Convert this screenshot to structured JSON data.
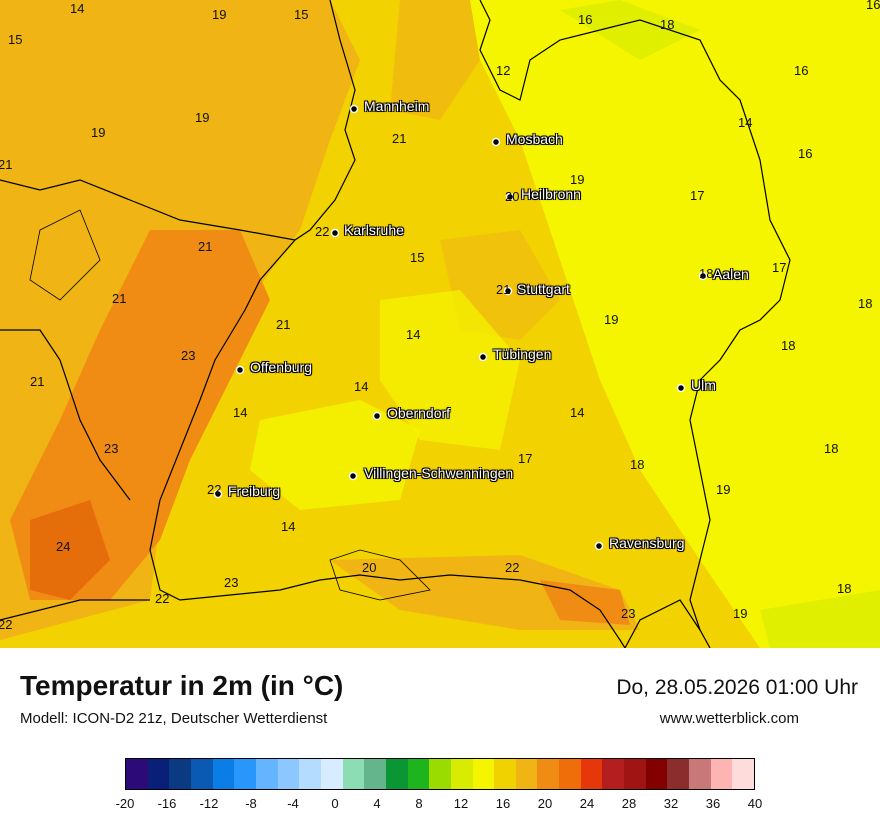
{
  "map": {
    "cities": [
      {
        "name": "Mannheim"
      },
      {
        "name": "Mosbach"
      },
      {
        "name": "Heilbronn"
      },
      {
        "name": "Karlsruhe"
      },
      {
        "name": "Aalen"
      },
      {
        "name": "Stuttgart"
      },
      {
        "name": "Tübingen"
      },
      {
        "name": "Offenburg"
      },
      {
        "name": "Ulm"
      },
      {
        "name": "Oberndorf"
      },
      {
        "name": "Villingen-Schwenningen"
      },
      {
        "name": "Freiburg"
      },
      {
        "name": "Ravensburg"
      }
    ],
    "temperature_labels": [
      "14",
      "19",
      "15",
      "16",
      "18",
      "16",
      "15",
      "12",
      "16",
      "19",
      "19",
      "21",
      "14",
      "21",
      "16",
      "19",
      "20",
      "17",
      "22",
      "21",
      "15",
      "18",
      "17",
      "21",
      "18",
      "21",
      "21",
      "19",
      "14",
      "23",
      "18",
      "21",
      "14",
      "14",
      "14",
      "17",
      "23",
      "18",
      "19",
      "22",
      "18",
      "14",
      "24",
      "23",
      "20",
      "22",
      "18",
      "22",
      "22",
      "23",
      "19"
    ]
  },
  "header": {
    "title": "Temperatur in 2m (in °C)",
    "model": "Modell: ICON-D2 21z, Deutscher Wetterdienst",
    "datetime": "Do, 28.05.2026 01:00 Uhr",
    "website": "www.wetterblick.com"
  },
  "legend": {
    "ticks": [
      "-20",
      "-16",
      "-12",
      "-8",
      "-4",
      "0",
      "4",
      "8",
      "12",
      "16",
      "20",
      "24",
      "28",
      "32",
      "36",
      "40"
    ],
    "colors": [
      "#2c0a78",
      "#0a1f78",
      "#0a3b82",
      "#0a5ab4",
      "#0a7ee6",
      "#2896fa",
      "#64b4ff",
      "#8cc8ff",
      "#b4dcff",
      "#d7ecff",
      "#8cdcb4",
      "#64b48c",
      "#0a9632",
      "#1eb41e",
      "#9bdc00",
      "#d7ec00",
      "#f5f500",
      "#f0d200",
      "#f0b414",
      "#f08c14",
      "#f06e0a",
      "#e6370a",
      "#b41e1e",
      "#a01414",
      "#820000",
      "#8c2d2d",
      "#c87878",
      "#ffb4b4",
      "#ffdcdc"
    ]
  }
}
